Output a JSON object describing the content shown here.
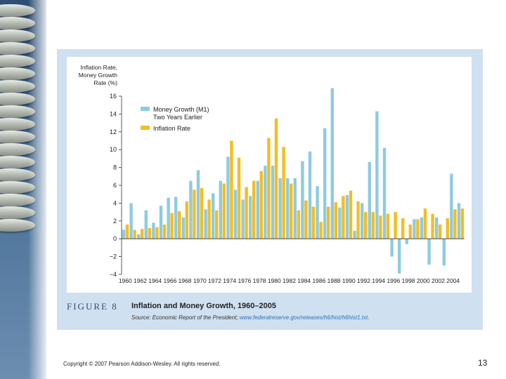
{
  "figure": {
    "label": "FIGURE 8",
    "title": "Inflation and Money Growth, 1960–2005",
    "source_label": "Source: Economic Report of the President;",
    "source_url": "www.federalreserve.gov/releases/h6/hist/h6hist1.txt."
  },
  "footer": {
    "copyright": "Copyright © 2007 Pearson Addison-Wesley. All rights reserved.",
    "page_number": "13"
  },
  "colors": {
    "money_growth": "#8ecbe0",
    "inflation": "#f4bd22",
    "panel_bg": "#cfe0f0"
  },
  "chart_data": {
    "type": "bar",
    "ylabel_lines": [
      "Inflation Rate,",
      "Money Growth",
      "Rate (%)"
    ],
    "ylim": [
      -4,
      16
    ],
    "yticks": [
      16,
      14,
      12,
      10,
      8,
      6,
      4,
      2,
      0,
      -2,
      -4
    ],
    "xtick_labels": [
      "1960",
      "1962",
      "1964",
      "1966",
      "1968",
      "1970",
      "1972",
      "1974",
      "1976",
      "1978",
      "1980",
      "1982",
      "1984",
      "1986",
      "1988",
      "1990",
      "1992",
      "1994",
      "1996",
      "1998",
      "2000",
      "2002",
      "2004"
    ],
    "categories": [
      1960,
      1961,
      1962,
      1963,
      1964,
      1965,
      1966,
      1967,
      1968,
      1969,
      1970,
      1971,
      1972,
      1973,
      1974,
      1975,
      1976,
      1977,
      1978,
      1979,
      1980,
      1981,
      1982,
      1983,
      1984,
      1985,
      1986,
      1987,
      1988,
      1989,
      1990,
      1991,
      1992,
      1993,
      1994,
      1995,
      1996,
      1997,
      1998,
      1999,
      2000,
      2001,
      2002,
      2003,
      2004,
      2005
    ],
    "series": [
      {
        "name": "Money Growth (M1) Two Years Earlier",
        "legend_lines": [
          "Money Growth (M1)",
          "Two Years Earlier"
        ],
        "values": [
          1.0,
          4.0,
          0.5,
          3.2,
          1.8,
          3.7,
          4.6,
          4.7,
          2.4,
          6.5,
          7.7,
          3.3,
          5.1,
          6.5,
          9.2,
          5.5,
          4.4,
          4.8,
          6.5,
          8.2,
          8.2,
          6.8,
          6.8,
          6.8,
          8.7,
          9.8,
          5.9,
          12.4,
          16.9,
          3.5,
          4.9,
          0.9,
          4.0,
          8.6,
          14.3,
          10.2,
          -2.0,
          -3.9,
          -0.6,
          2.2,
          2.4,
          -2.9,
          2.4,
          -3.0,
          7.3,
          4.0
        ]
      },
      {
        "name": "Inflation Rate",
        "legend_lines": [
          "Inflation Rate"
        ],
        "values": [
          1.6,
          1.0,
          1.1,
          1.2,
          1.3,
          1.6,
          2.9,
          3.1,
          4.2,
          5.5,
          5.7,
          4.4,
          3.2,
          6.2,
          11.0,
          9.1,
          5.8,
          6.5,
          7.6,
          11.3,
          13.5,
          10.3,
          6.2,
          3.2,
          4.3,
          3.6,
          1.9,
          3.6,
          4.1,
          4.8,
          5.4,
          4.2,
          3.0,
          3.0,
          2.6,
          2.8,
          3.0,
          2.3,
          1.6,
          2.2,
          3.4,
          2.8,
          1.6,
          2.3,
          3.3,
          3.4
        ]
      }
    ]
  }
}
